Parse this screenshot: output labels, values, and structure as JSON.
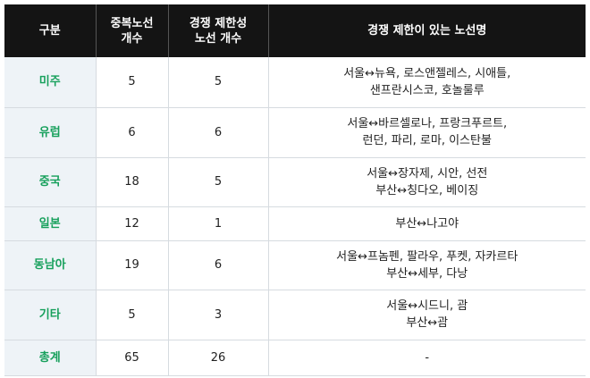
{
  "table": {
    "header": [
      [
        "구분"
      ],
      [
        "중복노선",
        "개수"
      ],
      [
        "경쟁 제한성",
        "노선 개수"
      ],
      [
        "경쟁 제한이 있는 노선명"
      ]
    ],
    "rows": [
      [
        "미주",
        5,
        5,
        [
          "서울↔뉴욕, 로스앤젤레스, 시애틀,",
          "샌프란시스코, 호놀룰루"
        ]
      ],
      [
        "유럽",
        6,
        6,
        [
          "서울↔바르셀로나, 프랑크푸르트,",
          "런던, 파리, 로마, 이스탄불"
        ]
      ],
      [
        "중국",
        18,
        5,
        [
          "서울↔장자제, 시안, 선전",
          "부산↔칭다오, 베이징"
        ]
      ],
      [
        "일본",
        12,
        1,
        [
          "부산↔나고야"
        ]
      ],
      [
        "동남아",
        19,
        6,
        [
          "서울↔프놈펜, 팔라우, 푸켓, 자카르타",
          "부산↔세부, 다낭"
        ]
      ],
      [
        "기타",
        5,
        3,
        [
          "서울↔시드니, 괌",
          "부산↔괌"
        ]
      ],
      [
        "총계",
        65,
        26,
        [
          "-"
        ]
      ]
    ]
  }
}
